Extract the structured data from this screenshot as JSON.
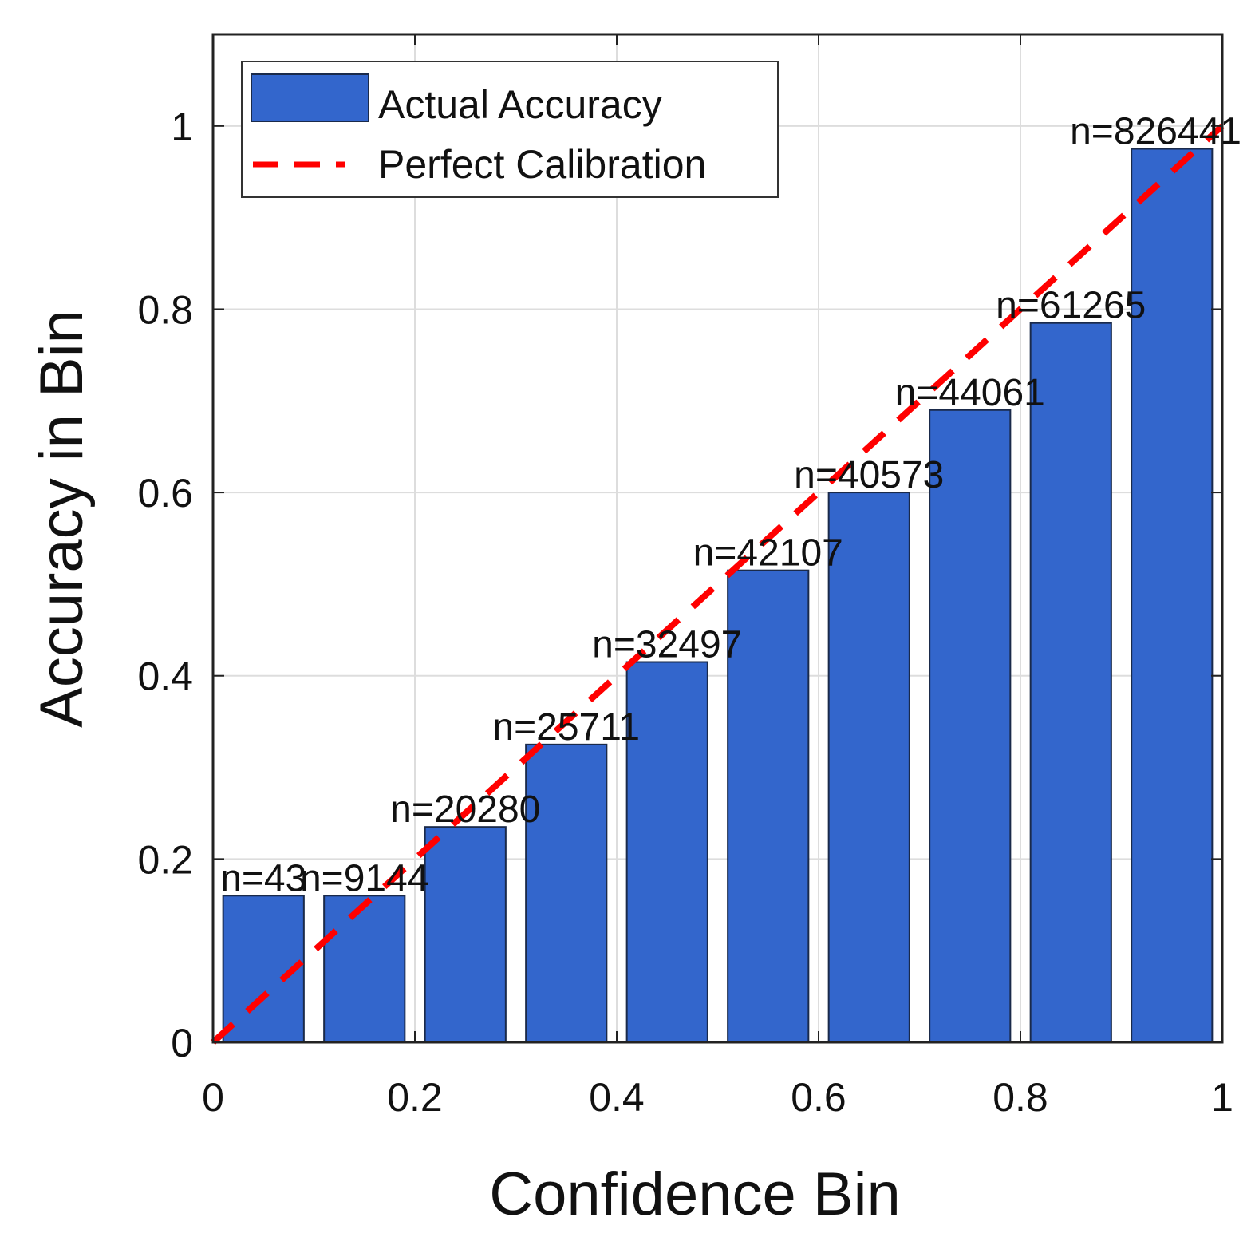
{
  "chart_data": {
    "type": "bar",
    "xlabel": "Confidence Bin",
    "ylabel": "Accuracy in Bin",
    "xlim": [
      0,
      1
    ],
    "ylim": [
      0,
      1.1
    ],
    "grid": true,
    "x_ticks": [
      0,
      0.2,
      0.4,
      0.6,
      0.8,
      1
    ],
    "x_tick_labels": [
      "0",
      "0.2",
      "0.4",
      "0.6",
      "0.8",
      "1"
    ],
    "y_ticks": [
      0,
      0.2,
      0.4,
      0.6,
      0.8,
      1
    ],
    "y_tick_labels": [
      "0",
      "0.2",
      "0.4",
      "0.6",
      "0.8",
      "1"
    ],
    "bin_centers": [
      0.05,
      0.15,
      0.25,
      0.35,
      0.45,
      0.55,
      0.65,
      0.75,
      0.85,
      0.95
    ],
    "bin_width": 0.08,
    "values": [
      0.16,
      0.16,
      0.235,
      0.325,
      0.415,
      0.515,
      0.6,
      0.69,
      0.785,
      0.975
    ],
    "bar_labels": [
      "n=43",
      "n=9144",
      "n=20280",
      "n=25711",
      "n=32497",
      "n=42107",
      "n=40573",
      "n=44061",
      "n=61265",
      "n=826441"
    ],
    "reference_line": {
      "name": "Perfect Calibration",
      "x": [
        0,
        1
      ],
      "y": [
        0,
        1
      ]
    },
    "legend": {
      "position": "top-left",
      "entries": [
        "Actual Accuracy",
        "Perfect Calibration"
      ]
    },
    "colors": {
      "bar_fill": "#3366cc",
      "bar_edge": "#1a2a4a",
      "reference_line": "#ff0000",
      "grid": "#dddddd",
      "axis": "#222222"
    }
  }
}
